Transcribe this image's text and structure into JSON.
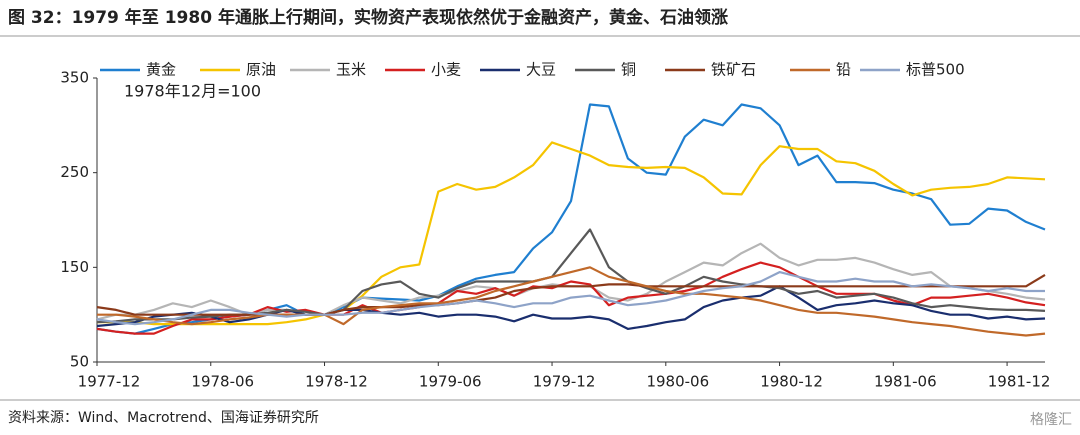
{
  "chart_data": {
    "type": "line",
    "title": "图 32：1979 年至 1980 年通胀上行期间，实物资产表现依然优于金融资产，黄金、石油领涨",
    "annotation": "1978年12月=100",
    "source": "资料来源：Wind、Macrotrend、国海证券研究所",
    "watermark": "格隆汇",
    "categories": [
      "1977-12",
      null,
      null,
      null,
      null,
      null,
      "1978-06",
      null,
      null,
      null,
      null,
      null,
      "1978-12",
      null,
      null,
      null,
      null,
      null,
      "1979-06",
      null,
      null,
      null,
      null,
      null,
      "1979-12",
      null,
      null,
      null,
      null,
      null,
      "1980-06",
      null,
      null,
      null,
      null,
      null,
      "1980-12",
      null,
      null,
      null,
      null,
      null,
      "1981-06",
      null,
      null,
      null,
      null,
      null,
      "1981-12",
      null,
      null
    ],
    "ylim": [
      50,
      350
    ],
    "yticks": [
      50,
      150,
      250,
      350
    ],
    "grid": false,
    "legend": "top",
    "series": [
      {
        "name": "黄金",
        "color": "#1f7fd0",
        "values": [
          85,
          82,
          80,
          85,
          90,
          92,
          95,
          98,
          100,
          105,
          110,
          100,
          100,
          108,
          118,
          117,
          116,
          115,
          120,
          130,
          138,
          142,
          145,
          170,
          187,
          220,
          322,
          320,
          265,
          250,
          248,
          288,
          306,
          300,
          322,
          318,
          300,
          258,
          268,
          240,
          240,
          239,
          232,
          228,
          222,
          195,
          196,
          212,
          210,
          198,
          190
        ]
      },
      {
        "name": "原油",
        "color": "#f5c400",
        "values": [
          92,
          92,
          92,
          90,
          90,
          90,
          90,
          90,
          90,
          90,
          92,
          95,
          100,
          105,
          120,
          140,
          150,
          153,
          230,
          238,
          232,
          235,
          245,
          258,
          282,
          275,
          268,
          258,
          256,
          255,
          256,
          255,
          245,
          228,
          227,
          258,
          278,
          275,
          275,
          262,
          260,
          252,
          238,
          226,
          232,
          234,
          235,
          238,
          245,
          244,
          243
        ]
      },
      {
        "name": "玉米",
        "color": "#b5b5b5",
        "values": [
          95,
          100,
          100,
          105,
          112,
          108,
          115,
          108,
          100,
          105,
          105,
          100,
          100,
          110,
          118,
          115,
          112,
          118,
          120,
          125,
          130,
          128,
          120,
          128,
          132,
          130,
          130,
          118,
          115,
          122,
          135,
          145,
          155,
          152,
          165,
          175,
          160,
          152,
          158,
          158,
          160,
          155,
          148,
          142,
          145,
          130,
          128,
          125,
          122,
          118,
          116
        ]
      },
      {
        "name": "小麦",
        "color": "#d42020",
        "values": [
          85,
          82,
          80,
          80,
          88,
          95,
          95,
          98,
          100,
          108,
          103,
          105,
          100,
          100,
          110,
          102,
          105,
          108,
          112,
          125,
          122,
          128,
          120,
          130,
          128,
          135,
          132,
          110,
          118,
          120,
          122,
          125,
          130,
          140,
          148,
          155,
          150,
          140,
          130,
          122,
          122,
          122,
          115,
          110,
          118,
          118,
          120,
          122,
          118,
          113,
          110
        ]
      },
      {
        "name": "大豆",
        "color": "#1a2e6e",
        "values": [
          88,
          90,
          92,
          98,
          100,
          102,
          98,
          92,
          95,
          100,
          105,
          100,
          100,
          105,
          105,
          102,
          100,
          102,
          98,
          100,
          100,
          98,
          93,
          100,
          96,
          96,
          98,
          95,
          85,
          88,
          92,
          95,
          108,
          115,
          118,
          120,
          130,
          118,
          105,
          110,
          112,
          115,
          112,
          110,
          104,
          100,
          100,
          96,
          98,
          95,
          96
        ]
      },
      {
        "name": "铜",
        "color": "#595959",
        "values": [
          92,
          93,
          95,
          95,
          95,
          97,
          98,
          100,
          100,
          102,
          105,
          103,
          100,
          105,
          125,
          132,
          135,
          122,
          118,
          128,
          135,
          135,
          135,
          135,
          140,
          165,
          190,
          150,
          135,
          128,
          122,
          130,
          140,
          135,
          132,
          130,
          128,
          122,
          125,
          118,
          120,
          122,
          118,
          112,
          108,
          110,
          108,
          106,
          105,
          105,
          104
        ]
      },
      {
        "name": "铁矿石",
        "color": "#8b3a1a",
        "values": [
          108,
          105,
          100,
          100,
          100,
          100,
          100,
          100,
          100,
          100,
          100,
          100,
          100,
          105,
          108,
          108,
          108,
          110,
          110,
          112,
          115,
          118,
          125,
          128,
          130,
          130,
          130,
          132,
          132,
          130,
          130,
          130,
          130,
          130,
          130,
          130,
          130,
          130,
          130,
          130,
          130,
          130,
          130,
          130,
          130,
          130,
          130,
          130,
          130,
          130,
          142
        ]
      },
      {
        "name": "铅",
        "color": "#c0692a",
        "values": [
          100,
          100,
          98,
          95,
          92,
          90,
          92,
          95,
          97,
          100,
          100,
          100,
          100,
          90,
          105,
          108,
          110,
          112,
          112,
          115,
          118,
          125,
          130,
          135,
          140,
          145,
          150,
          140,
          135,
          130,
          125,
          122,
          122,
          120,
          118,
          115,
          110,
          105,
          102,
          102,
          100,
          98,
          95,
          92,
          90,
          88,
          85,
          82,
          80,
          78,
          80
        ]
      },
      {
        "name": "标普500",
        "color": "#8ea3c8",
        "values": [
          95,
          92,
          90,
          92,
          95,
          100,
          105,
          105,
          102,
          100,
          98,
          100,
          100,
          100,
          102,
          102,
          105,
          108,
          110,
          112,
          115,
          112,
          108,
          112,
          112,
          118,
          120,
          115,
          110,
          112,
          115,
          120,
          125,
          128,
          130,
          135,
          145,
          140,
          135,
          135,
          138,
          135,
          135,
          130,
          132,
          130,
          128,
          125,
          128,
          125,
          125
        ]
      }
    ]
  }
}
